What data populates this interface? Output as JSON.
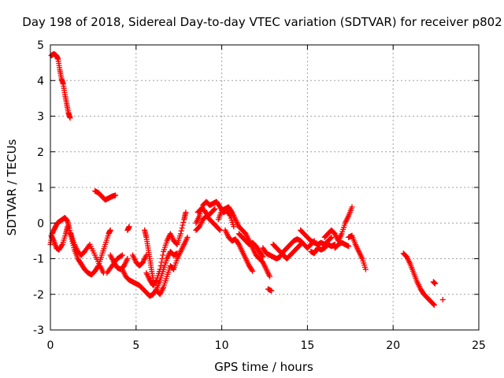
{
  "chart_data": {
    "type": "scatter",
    "title": "Day 198 of 2018, Sidereal Day-to-day VTEC variation (SDTVAR) for receiver p802",
    "xlabel": "GPS time / hours",
    "ylabel": "SDTVAR / TECUs",
    "xlim": [
      0,
      25
    ],
    "ylim": [
      -3,
      5
    ],
    "xticks": [
      "0",
      "5",
      "10",
      "15",
      "20",
      "25"
    ],
    "yticks": [
      "-3",
      "-2",
      "-1",
      "0",
      "1",
      "2",
      "3",
      "4",
      "5"
    ],
    "grid": true,
    "marker": "+",
    "series": [
      {
        "name": "SDTVAR",
        "color": "#ff0000",
        "segments": [
          [
            [
              0.05,
              4.7
            ],
            [
              0.2,
              4.75
            ],
            [
              0.35,
              4.7
            ],
            [
              0.45,
              4.6
            ],
            [
              0.55,
              4.3
            ],
            [
              0.65,
              4.05
            ],
            [
              0.75,
              3.9
            ],
            [
              0.85,
              3.6
            ],
            [
              0.95,
              3.35
            ],
            [
              1.05,
              3.1
            ],
            [
              1.15,
              2.95
            ]
          ],
          [
            [
              0.0,
              -0.6
            ],
            [
              0.1,
              -0.3
            ],
            [
              0.25,
              -0.15
            ],
            [
              0.4,
              0.0
            ],
            [
              0.55,
              0.05
            ],
            [
              0.7,
              0.1
            ],
            [
              0.85,
              0.15
            ],
            [
              1.0,
              0.05
            ],
            [
              1.1,
              -0.15
            ],
            [
              1.25,
              -0.45
            ],
            [
              1.4,
              -0.75
            ],
            [
              1.6,
              -1.0
            ],
            [
              1.8,
              -1.15
            ],
            [
              2.0,
              -1.3
            ],
            [
              2.2,
              -1.4
            ],
            [
              2.4,
              -1.45
            ],
            [
              2.6,
              -1.35
            ],
            [
              2.8,
              -1.2
            ],
            [
              3.0,
              -0.9
            ],
            [
              3.2,
              -0.6
            ],
            [
              3.4,
              -0.3
            ],
            [
              3.5,
              -0.2
            ]
          ],
          [
            [
              0.05,
              -0.35
            ],
            [
              0.2,
              -0.5
            ],
            [
              0.35,
              -0.7
            ],
            [
              0.5,
              -0.75
            ],
            [
              0.7,
              -0.6
            ],
            [
              0.9,
              -0.3
            ],
            [
              1.0,
              -0.1
            ]
          ],
          [
            [
              1.2,
              -0.3
            ],
            [
              1.4,
              -0.6
            ],
            [
              1.6,
              -0.8
            ],
            [
              1.8,
              -0.9
            ],
            [
              2.0,
              -0.8
            ],
            [
              2.3,
              -0.6
            ],
            [
              2.6,
              -0.9
            ],
            [
              2.9,
              -1.2
            ],
            [
              3.1,
              -1.4
            ]
          ],
          [
            [
              2.6,
              0.9
            ],
            [
              2.8,
              0.85
            ],
            [
              3.0,
              0.75
            ],
            [
              3.2,
              0.65
            ],
            [
              3.4,
              0.7
            ],
            [
              3.6,
              0.75
            ],
            [
              3.8,
              0.78
            ]
          ],
          [
            [
              3.5,
              -0.9
            ],
            [
              3.7,
              -1.1
            ],
            [
              3.9,
              -1.25
            ],
            [
              4.1,
              -1.3
            ],
            [
              4.3,
              -1.2
            ],
            [
              4.5,
              -1.0
            ]
          ],
          [
            [
              3.3,
              -1.4
            ],
            [
              3.6,
              -1.2
            ],
            [
              3.9,
              -1.0
            ],
            [
              4.2,
              -0.9
            ]
          ],
          [
            [
              4.5,
              -0.2
            ],
            [
              4.6,
              -0.1
            ]
          ],
          [
            [
              4.2,
              -1.3
            ],
            [
              4.4,
              -1.5
            ],
            [
              4.6,
              -1.6
            ],
            [
              4.8,
              -1.65
            ],
            [
              5.0,
              -1.7
            ],
            [
              5.2,
              -1.75
            ],
            [
              5.4,
              -1.85
            ],
            [
              5.6,
              -1.95
            ],
            [
              5.8,
              -2.05
            ],
            [
              6.0,
              -2.0
            ],
            [
              6.2,
              -1.85
            ],
            [
              6.4,
              -1.6
            ],
            [
              6.6,
              -1.3
            ],
            [
              6.8,
              -1.0
            ],
            [
              7.0,
              -0.8
            ],
            [
              7.2,
              -0.9
            ],
            [
              7.4,
              -0.85
            ]
          ],
          [
            [
              4.8,
              -0.9
            ],
            [
              5.0,
              -1.1
            ],
            [
              5.2,
              -1.2
            ],
            [
              5.4,
              -1.1
            ],
            [
              5.6,
              -0.9
            ]
          ],
          [
            [
              5.5,
              -0.2
            ],
            [
              5.6,
              -0.4
            ],
            [
              5.7,
              -0.7
            ],
            [
              5.8,
              -1.0
            ],
            [
              5.9,
              -1.3
            ],
            [
              6.0,
              -1.6
            ]
          ],
          [
            [
              5.6,
              -1.4
            ],
            [
              5.8,
              -1.6
            ],
            [
              6.0,
              -1.75
            ],
            [
              6.2,
              -1.6
            ],
            [
              6.4,
              -1.3
            ],
            [
              6.6,
              -0.8
            ],
            [
              6.8,
              -0.5
            ],
            [
              7.0,
              -0.3
            ],
            [
              7.2,
              -0.5
            ],
            [
              7.4,
              -0.6
            ],
            [
              7.6,
              -0.3
            ],
            [
              7.8,
              0.1
            ],
            [
              7.9,
              0.3
            ]
          ],
          [
            [
              6.2,
              -1.9
            ],
            [
              6.4,
              -2.0
            ],
            [
              6.6,
              -1.8
            ],
            [
              6.8,
              -1.5
            ],
            [
              7.0,
              -1.2
            ],
            [
              7.2,
              -1.3
            ],
            [
              7.4,
              -1.0
            ],
            [
              7.6,
              -0.8
            ],
            [
              7.8,
              -0.6
            ],
            [
              8.0,
              -0.4
            ]
          ],
          [
            [
              8.5,
              0.0
            ],
            [
              8.7,
              0.2
            ],
            [
              8.9,
              0.5
            ],
            [
              9.1,
              0.6
            ],
            [
              9.3,
              0.5
            ],
            [
              9.5,
              0.55
            ],
            [
              9.7,
              0.6
            ],
            [
              9.9,
              0.45
            ],
            [
              10.1,
              0.3
            ],
            [
              10.3,
              0.35
            ],
            [
              10.5,
              0.2
            ],
            [
              10.7,
              -0.1
            ]
          ],
          [
            [
              8.5,
              -0.2
            ],
            [
              8.7,
              -0.1
            ],
            [
              8.9,
              0.1
            ],
            [
              9.1,
              0.2
            ],
            [
              9.3,
              0.1
            ],
            [
              9.5,
              0.0
            ],
            [
              9.7,
              -0.1
            ],
            [
              9.9,
              -0.2
            ]
          ],
          [
            [
              8.6,
              0.3
            ],
            [
              8.8,
              0.4
            ],
            [
              9.0,
              0.35
            ],
            [
              9.2,
              0.2
            ],
            [
              9.4,
              0.3
            ],
            [
              9.6,
              0.4
            ]
          ],
          [
            [
              9.8,
              0.1
            ],
            [
              10.0,
              0.35
            ],
            [
              10.2,
              0.4
            ],
            [
              10.4,
              0.45
            ],
            [
              10.6,
              0.3
            ],
            [
              10.8,
              0.1
            ],
            [
              11.0,
              -0.1
            ],
            [
              11.2,
              -0.2
            ],
            [
              11.4,
              -0.3
            ],
            [
              11.6,
              -0.5
            ],
            [
              11.8,
              -0.7
            ],
            [
              12.0,
              -0.9
            ],
            [
              12.2,
              -1.0
            ],
            [
              12.4,
              -1.1
            ],
            [
              12.6,
              -1.3
            ],
            [
              12.8,
              -1.5
            ]
          ],
          [
            [
              10.2,
              -0.2
            ],
            [
              10.4,
              -0.4
            ],
            [
              10.6,
              -0.5
            ],
            [
              10.8,
              -0.45
            ],
            [
              11.0,
              -0.6
            ],
            [
              11.2,
              -0.8
            ],
            [
              11.4,
              -1.0
            ],
            [
              11.6,
              -1.2
            ],
            [
              11.8,
              -1.35
            ]
          ],
          [
            [
              11.0,
              -0.3
            ],
            [
              11.2,
              -0.4
            ],
            [
              11.4,
              -0.5
            ],
            [
              11.6,
              -0.6
            ],
            [
              11.8,
              -0.55
            ],
            [
              12.0,
              -0.65
            ],
            [
              12.2,
              -0.8
            ],
            [
              12.4,
              -0.95
            ]
          ],
          [
            [
              12.7,
              -1.85
            ],
            [
              12.9,
              -1.9
            ]
          ],
          [
            [
              12.4,
              -0.7
            ],
            [
              12.6,
              -0.85
            ],
            [
              12.8,
              -0.9
            ],
            [
              13.0,
              -0.95
            ],
            [
              13.2,
              -1.0
            ],
            [
              13.4,
              -0.95
            ],
            [
              13.6,
              -0.8
            ],
            [
              13.8,
              -0.7
            ],
            [
              14.0,
              -0.6
            ],
            [
              14.2,
              -0.5
            ],
            [
              14.4,
              -0.45
            ],
            [
              14.6,
              -0.5
            ],
            [
              14.8,
              -0.6
            ],
            [
              15.0,
              -0.7
            ],
            [
              15.2,
              -0.6
            ],
            [
              15.4,
              -0.5
            ]
          ],
          [
            [
              13.0,
              -0.6
            ],
            [
              13.2,
              -0.7
            ],
            [
              13.4,
              -0.8
            ],
            [
              13.6,
              -0.9
            ],
            [
              13.8,
              -1.0
            ],
            [
              14.0,
              -0.9
            ],
            [
              14.2,
              -0.8
            ],
            [
              14.4,
              -0.7
            ],
            [
              14.6,
              -0.6
            ]
          ],
          [
            [
              14.6,
              -0.2
            ],
            [
              14.8,
              -0.3
            ],
            [
              15.0,
              -0.4
            ],
            [
              15.2,
              -0.5
            ],
            [
              15.4,
              -0.55
            ],
            [
              15.6,
              -0.6
            ],
            [
              15.8,
              -0.55
            ],
            [
              16.0,
              -0.6
            ],
            [
              16.2,
              -0.5
            ],
            [
              16.4,
              -0.4
            ]
          ],
          [
            [
              15.2,
              -0.8
            ],
            [
              15.4,
              -0.85
            ],
            [
              15.6,
              -0.7
            ],
            [
              15.8,
              -0.75
            ],
            [
              16.0,
              -0.7
            ],
            [
              16.2,
              -0.6
            ],
            [
              16.4,
              -0.65
            ],
            [
              16.6,
              -0.6
            ]
          ],
          [
            [
              16.0,
              -0.4
            ],
            [
              16.2,
              -0.3
            ],
            [
              16.4,
              -0.2
            ],
            [
              16.6,
              -0.3
            ],
            [
              16.8,
              -0.5
            ],
            [
              17.0,
              -0.3
            ],
            [
              17.2,
              0.0
            ],
            [
              17.4,
              0.2
            ],
            [
              17.6,
              0.45
            ]
          ],
          [
            [
              16.6,
              -0.7
            ],
            [
              16.8,
              -0.6
            ],
            [
              17.0,
              -0.55
            ],
            [
              17.2,
              -0.6
            ],
            [
              17.4,
              -0.65
            ]
          ],
          [
            [
              17.4,
              -0.4
            ],
            [
              17.6,
              -0.35
            ],
            [
              17.8,
              -0.6
            ],
            [
              18.0,
              -0.8
            ],
            [
              18.2,
              -1.0
            ],
            [
              18.4,
              -1.3
            ]
          ],
          [
            [
              20.6,
              -0.85
            ],
            [
              20.8,
              -0.95
            ],
            [
              21.0,
              -1.15
            ],
            [
              21.2,
              -1.4
            ],
            [
              21.4,
              -1.65
            ],
            [
              21.6,
              -1.85
            ],
            [
              21.8,
              -2.0
            ],
            [
              22.0,
              -2.1
            ],
            [
              22.2,
              -2.2
            ],
            [
              22.4,
              -2.3
            ]
          ],
          [
            [
              22.35,
              -1.65
            ],
            [
              22.45,
              -1.7
            ]
          ],
          [
            [
              22.9,
              -2.15
            ]
          ]
        ]
      }
    ]
  }
}
